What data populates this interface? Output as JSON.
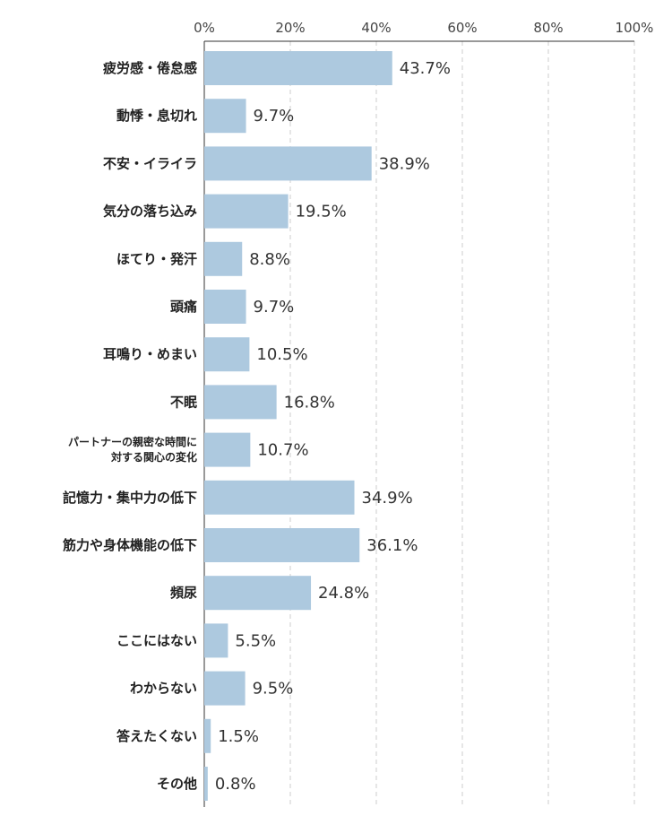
{
  "chart_data": {
    "type": "bar",
    "orientation": "horizontal",
    "title": "",
    "xlabel": "",
    "ylabel": "",
    "xlim": [
      0,
      100
    ],
    "x_ticks": [
      "0%",
      "20%",
      "40%",
      "60%",
      "80%",
      "100%"
    ],
    "x_tick_values": [
      0,
      20,
      40,
      60,
      80,
      100
    ],
    "x_axis_position": "top",
    "grid": "vertical-dashed",
    "bar_color": "#adc9df",
    "categories": [
      [
        "疲労感・倦怠感"
      ],
      [
        "動悸・息切れ"
      ],
      [
        "不安・イライラ"
      ],
      [
        "気分の落ち込み"
      ],
      [
        "ほてり・発汗"
      ],
      [
        "頭痛"
      ],
      [
        "耳鳴り・めまい"
      ],
      [
        "不眠"
      ],
      [
        "パートナーの親密な時間に",
        "対する関心の変化"
      ],
      [
        "記憶力・集中力の低下"
      ],
      [
        "筋力や身体機能の低下"
      ],
      [
        "頻尿"
      ],
      [
        "ここにはない"
      ],
      [
        "わからない"
      ],
      [
        "答えたくない"
      ],
      [
        "その他"
      ]
    ],
    "values": [
      43.7,
      9.7,
      38.9,
      19.5,
      8.8,
      9.7,
      10.5,
      16.8,
      10.7,
      34.9,
      36.1,
      24.8,
      5.5,
      9.5,
      1.5,
      0.8
    ],
    "value_labels": [
      "43.7%",
      "9.7%",
      "38.9%",
      "19.5%",
      "8.8%",
      "9.7%",
      "10.5%",
      "16.8%",
      "10.7%",
      "34.9%",
      "36.1%",
      "24.8%",
      "5.5%",
      "9.5%",
      "1.5%",
      "0.8%"
    ]
  }
}
